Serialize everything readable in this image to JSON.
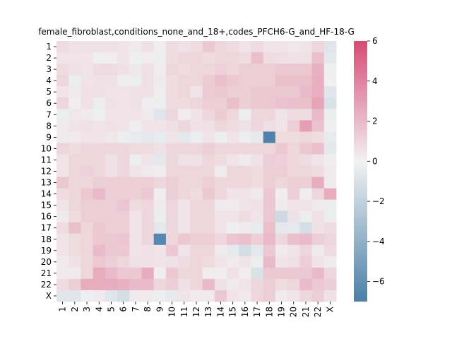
{
  "chart_data": {
    "type": "heatmap",
    "title": "female_fibroblast,conditions_none_and_18+,codes_PFCH6-G_and_HF-18-G",
    "x_labels": [
      "1",
      "2",
      "3",
      "4",
      "5",
      "6",
      "7",
      "8",
      "9",
      "10",
      "11",
      "12",
      "13",
      "14",
      "15",
      "16",
      "17",
      "18",
      "19",
      "20",
      "21",
      "22",
      "X"
    ],
    "y_labels": [
      "1",
      "2",
      "3",
      "4",
      "5",
      "6",
      "7",
      "8",
      "9",
      "10",
      "11",
      "12",
      "13",
      "14",
      "15",
      "16",
      "17",
      "18",
      "19",
      "20",
      "21",
      "22",
      "X"
    ],
    "vmin": -7,
    "vmax": 6,
    "colorbar_ticks": [
      6,
      4,
      2,
      0,
      -2,
      -4,
      -6
    ],
    "colorbar_tick_labels": [
      "6",
      "4",
      "2",
      "0",
      "−2",
      "−4",
      "−6"
    ],
    "colors": {
      "low": "#4a7fa8",
      "mid": "#f2f2f2",
      "high": "#d84a76"
    },
    "values": [
      [
        0.8,
        0.6,
        0.6,
        0.6,
        0.6,
        0.5,
        0.3,
        0.6,
        0.2,
        0.8,
        0.6,
        0.8,
        1.5,
        1.0,
        0.8,
        0.5,
        0.8,
        0.5,
        0.5,
        0.4,
        0.5,
        1.0,
        -0.8
      ],
      [
        0.5,
        0.5,
        0.5,
        -0.2,
        0.2,
        0.5,
        -0.2,
        0.2,
        -0.3,
        0.8,
        1.0,
        1.0,
        0.8,
        1.0,
        1.0,
        0.8,
        1.8,
        0.8,
        0.7,
        0.6,
        0.6,
        1.8,
        -0.6
      ],
      [
        0.8,
        0.6,
        0.5,
        0.8,
        0.8,
        0.6,
        0.4,
        0.6,
        0.2,
        1.0,
        0.8,
        1.0,
        1.0,
        1.2,
        1.0,
        1.3,
        1.3,
        1.3,
        1.5,
        1.5,
        1.5,
        2.3,
        -0.2
      ],
      [
        1.0,
        -0.3,
        0.5,
        0.6,
        0.6,
        0.2,
        -0.3,
        0.6,
        0.3,
        0.8,
        1.0,
        1.0,
        1.4,
        1.8,
        1.5,
        1.3,
        1.3,
        1.3,
        1.8,
        1.8,
        1.8,
        2.4,
        -0.1
      ],
      [
        0.5,
        0.3,
        0.6,
        0.6,
        0.5,
        0.5,
        0.6,
        0.6,
        0.2,
        0.8,
        1.0,
        0.5,
        1.4,
        1.5,
        1.3,
        1.3,
        1.5,
        1.5,
        1.5,
        1.5,
        2.0,
        2.4,
        -0.8
      ],
      [
        1.0,
        0.2,
        0.6,
        -0.3,
        0.6,
        0.5,
        0.6,
        0.2,
        -0.3,
        0.8,
        0.8,
        1.0,
        1.3,
        1.3,
        1.8,
        1.3,
        1.5,
        1.5,
        1.7,
        1.8,
        1.8,
        2.8,
        -1.0
      ],
      [
        -0.3,
        0.4,
        0.3,
        -0.2,
        0.5,
        0.5,
        0.5,
        0.3,
        -0.8,
        1.0,
        0.2,
        0.5,
        1.0,
        1.4,
        1.0,
        -0.3,
        1.0,
        1.0,
        0.5,
        0.8,
        0.8,
        2.0,
        -0.3
      ],
      [
        0.3,
        0.5,
        0.6,
        0.5,
        0.6,
        0.5,
        0.2,
        0.5,
        0.5,
        0.7,
        1.0,
        0.6,
        0.6,
        1.0,
        0.8,
        0.6,
        1.0,
        0.7,
        0.5,
        1.3,
        3.0,
        1.7,
        -0.2
      ],
      [
        0.3,
        0.3,
        0.5,
        0.5,
        0.4,
        -0.3,
        -0.4,
        -0.6,
        -0.4,
        0.5,
        -0.6,
        -0.3,
        0.5,
        -0.3,
        0.5,
        -0.3,
        -0.5,
        -6.8,
        0.8,
        0.8,
        1.0,
        0.8,
        -0.4
      ],
      [
        1.0,
        0.8,
        1.0,
        1.0,
        1.0,
        1.0,
        0.8,
        0.8,
        0.6,
        1.0,
        1.0,
        1.0,
        1.3,
        1.0,
        1.0,
        1.0,
        1.0,
        1.0,
        1.5,
        1.0,
        1.5,
        1.8,
        -0.6
      ],
      [
        0.5,
        1.0,
        1.0,
        1.0,
        0.6,
        1.0,
        -0.3,
        0.5,
        -0.6,
        1.0,
        0.6,
        0.6,
        1.0,
        0.8,
        0.5,
        0.3,
        0.6,
        1.3,
        1.2,
        1.0,
        0.8,
        0.5,
        0.2
      ],
      [
        0.5,
        1.0,
        1.2,
        1.0,
        0.6,
        1.0,
        0.5,
        0.3,
        0.2,
        1.0,
        1.0,
        1.0,
        1.0,
        0.3,
        1.0,
        1.0,
        0.8,
        1.3,
        1.3,
        1.0,
        1.0,
        0.8,
        0.3
      ],
      [
        1.5,
        1.0,
        1.0,
        1.3,
        1.3,
        1.3,
        1.3,
        1.3,
        1.0,
        1.3,
        1.0,
        1.0,
        1.3,
        1.0,
        1.0,
        1.0,
        0.8,
        1.3,
        1.0,
        1.3,
        1.3,
        2.5,
        0.3
      ],
      [
        0.8,
        1.0,
        1.5,
        2.0,
        1.3,
        1.3,
        1.3,
        1.5,
        0.2,
        1.3,
        1.0,
        0.8,
        1.5,
        1.0,
        0.5,
        0.5,
        0.3,
        1.5,
        0.2,
        1.3,
        0.2,
        1.0,
        2.5
      ],
      [
        0.5,
        1.0,
        1.3,
        1.3,
        1.3,
        1.6,
        0.8,
        1.0,
        0.3,
        1.0,
        0.5,
        1.0,
        1.0,
        0.3,
        0.3,
        0.5,
        0.6,
        1.5,
        0.3,
        0.5,
        0.5,
        0.3,
        -0.3
      ],
      [
        0.3,
        0.8,
        1.3,
        1.3,
        1.3,
        1.3,
        0.5,
        1.0,
        -0.3,
        1.0,
        0.5,
        1.0,
        1.0,
        0.5,
        0.5,
        0.8,
        0.5,
        1.5,
        -1.5,
        0.6,
        -0.3,
        0.6,
        -0.3
      ],
      [
        0.8,
        1.8,
        1.0,
        1.5,
        1.3,
        1.3,
        0.5,
        1.0,
        -0.6,
        1.0,
        0.5,
        1.0,
        1.0,
        0.5,
        -0.2,
        0.3,
        -0.4,
        1.8,
        -0.6,
        -0.5,
        -1.2,
        0.6,
        0.8
      ],
      [
        0.5,
        0.8,
        1.0,
        1.5,
        1.5,
        1.6,
        0.5,
        1.0,
        -6.5,
        1.0,
        1.5,
        1.3,
        1.3,
        1.0,
        1.6,
        1.8,
        1.3,
        2.0,
        1.0,
        1.8,
        2.0,
        1.3,
        1.0
      ],
      [
        0.5,
        0.8,
        1.0,
        2.0,
        1.5,
        1.5,
        0.5,
        0.6,
        0.5,
        1.5,
        0.5,
        1.0,
        1.0,
        0.3,
        -0.5,
        -1.3,
        -0.6,
        1.5,
        0.3,
        0.5,
        1.0,
        0.3,
        0.8
      ],
      [
        0.3,
        0.6,
        1.0,
        1.5,
        1.3,
        1.0,
        0.6,
        0.6,
        0.5,
        0.6,
        0.8,
        1.0,
        0.8,
        0.5,
        0.3,
        0.5,
        -0.3,
        2.0,
        0.5,
        0.6,
        1.3,
        0.5,
        0.3
      ],
      [
        0.3,
        0.3,
        1.0,
        2.5,
        2.0,
        1.5,
        1.5,
        2.5,
        0.2,
        1.5,
        1.0,
        1.0,
        0.2,
        0.2,
        0.6,
        0.2,
        -1.0,
        1.5,
        1.5,
        1.5,
        1.5,
        2.0,
        1.0
      ],
      [
        0.8,
        1.3,
        2.5,
        2.5,
        2.5,
        2.3,
        2.0,
        2.0,
        1.0,
        1.3,
        0.6,
        1.0,
        2.0,
        0.6,
        0.3,
        0.5,
        1.0,
        1.3,
        0.8,
        1.0,
        2.0,
        1.5,
        1.3
      ],
      [
        -0.8,
        -0.8,
        -0.2,
        0.3,
        -0.8,
        -1.2,
        0.3,
        0.3,
        -0.3,
        -0.5,
        0.5,
        0.3,
        0.3,
        1.5,
        0.5,
        0.3,
        1.0,
        1.3,
        0.3,
        0.5,
        1.0,
        1.3,
        0.6
      ]
    ]
  }
}
